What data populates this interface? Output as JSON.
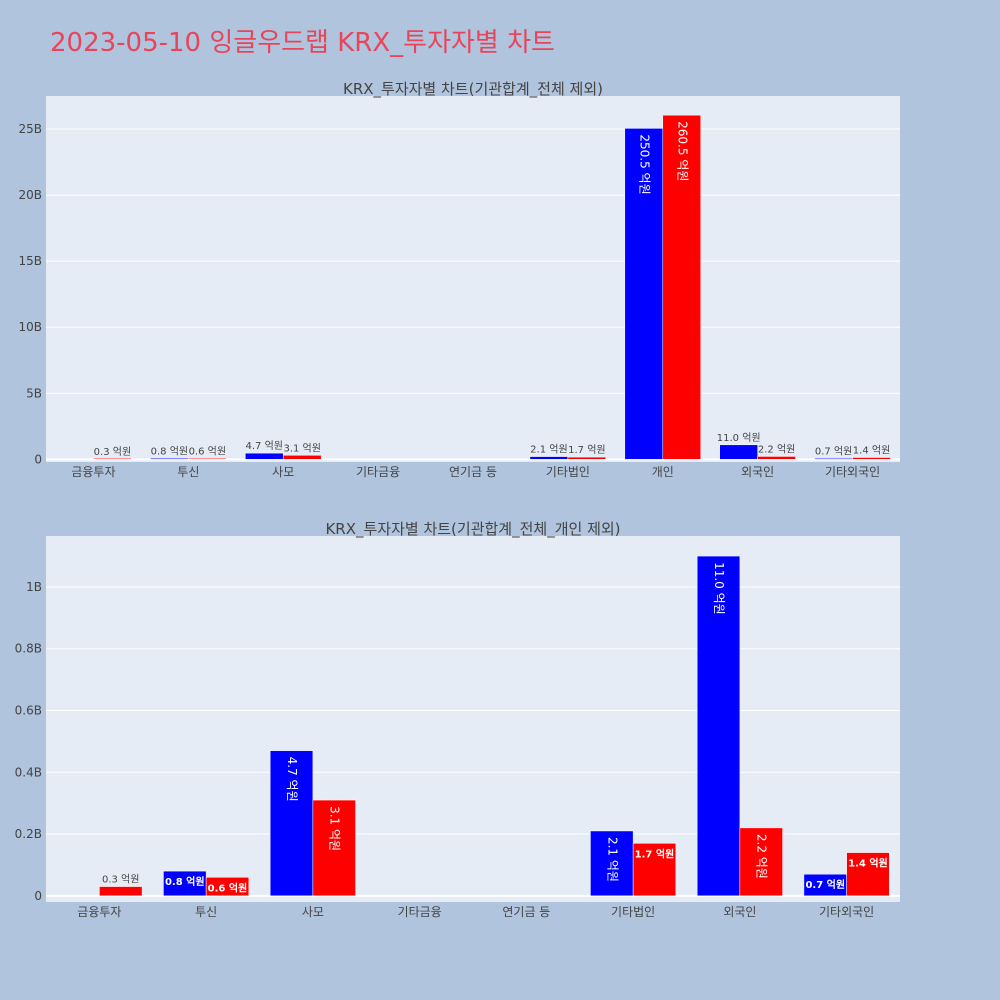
{
  "page": {
    "title": "2023-05-10 잉글우드랩 KRX_투자자별 차트"
  },
  "colors": {
    "background": "#b0c4de",
    "plot_background": "#e5ecf6",
    "title": "#e8455a",
    "series_a": "#0000ff",
    "series_b": "#ff0000"
  },
  "chart_data": [
    {
      "type": "bar",
      "title": "KRX_투자자별 차트(기관합계_전체 제외)",
      "categories": [
        "금융투자",
        "투신",
        "사모",
        "기타금융",
        "연기금 등",
        "기타법인",
        "개인",
        "외국인",
        "기타외국인"
      ],
      "series": [
        {
          "color": "#0000ff",
          "values": [
            null,
            80000000,
            470000000,
            null,
            null,
            210000000,
            25050000000,
            1100000000,
            70000000
          ],
          "labels": [
            "",
            "0.8 억원",
            "4.7 억원",
            "",
            "",
            "2.1 억원",
            "250.5 억원",
            "11.0 억원",
            "0.7 억원"
          ]
        },
        {
          "color": "#ff0000",
          "values": [
            30000000,
            60000000,
            310000000,
            null,
            null,
            170000000,
            26050000000,
            220000000,
            140000000
          ],
          "labels": [
            "0.3 억원",
            "0.6 억원",
            "3.1 억원",
            "",
            "",
            "1.7 억원",
            "260.5 억원",
            "2.2 억원",
            "1.4 억원"
          ]
        }
      ],
      "yticks": [
        0,
        5000000000,
        10000000000,
        15000000000,
        20000000000,
        25000000000
      ],
      "yticklabels": [
        "0",
        "5B",
        "10B",
        "15B",
        "20B",
        "25B"
      ],
      "ylim": [
        -200000000,
        27500000000
      ],
      "grid": true
    },
    {
      "type": "bar",
      "title": "KRX_투자자별 차트(기관합계_전체_개인 제외)",
      "categories": [
        "금융투자",
        "투신",
        "사모",
        "기타금융",
        "연기금 등",
        "기타법인",
        "외국인",
        "기타외국인"
      ],
      "series": [
        {
          "color": "#0000ff",
          "values": [
            null,
            80000000,
            470000000,
            null,
            null,
            210000000,
            1100000000,
            70000000
          ],
          "labels": [
            "",
            "0.8 억원",
            "4.7 억원",
            "",
            "",
            "2.1 억원",
            "11.0 억원",
            "0.7 억원"
          ]
        },
        {
          "color": "#ff0000",
          "values": [
            30000000,
            60000000,
            310000000,
            null,
            null,
            170000000,
            220000000,
            140000000
          ],
          "labels": [
            "0.3 억원",
            "0.6 억원",
            "3.1 억원",
            "",
            "",
            "1.7 억원",
            "2.2 억원",
            "1.4 억원"
          ]
        }
      ],
      "yticks": [
        0,
        200000000,
        400000000,
        600000000,
        800000000,
        1000000000
      ],
      "yticklabels": [
        "0",
        "0.2B",
        "0.4B",
        "0.6B",
        "0.8B",
        "1B"
      ],
      "ylim": [
        -20000000,
        1165000000
      ],
      "grid": true
    }
  ]
}
